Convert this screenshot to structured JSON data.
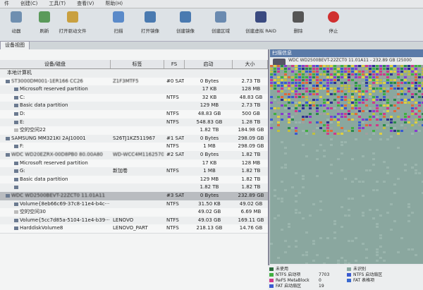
{
  "menu": [
    "件",
    "创建(C)",
    "工具(T)",
    "查看(V)",
    "帮助(H)"
  ],
  "toolbar": [
    "动器",
    "刷新",
    "打开驱动文件",
    "扫描",
    "打开镜像",
    "创建镜像",
    "创建区域",
    "创建虚拟 RAID",
    "删除",
    "停止"
  ],
  "tab": "设备视图",
  "table": {
    "columns": [
      "设备/磁盘",
      "标签",
      "FS",
      "启动",
      "大小"
    ],
    "rows": [
      [
        "本地计算机",
        "",
        "",
        "",
        ""
      ],
      [
        "ST3000DM001-1ER166 CC26",
        "Z1F3MTF5",
        "#0 SATA···",
        "0 Bytes",
        "2.73 TB"
      ],
      [
        "Microsoft reserved partition",
        "",
        "",
        "17 KB",
        "128 MB"
      ],
      [
        "C:",
        "",
        "NTFS",
        "32 KB",
        "48.83 GB"
      ],
      [
        "Basic data partition",
        "",
        "",
        "129 MB",
        "2.73 TB"
      ],
      [
        "D:",
        "",
        "NTFS",
        "48.83 GB",
        "500 GB"
      ],
      [
        "E:",
        "",
        "NTFS",
        "548.83 GB",
        "1.28 TB"
      ],
      [
        "空的空间22",
        "",
        "",
        "1.82 TB",
        "184.98 GB"
      ],
      [
        "SAMSUNG MM321KI 2AJ10001",
        "S26TJ1KZ511967",
        "#1 SATA···",
        "0 Bytes",
        "298.09 GB"
      ],
      [
        "F:",
        "",
        "NTFS",
        "1 MB",
        "298.09 GB"
      ],
      [
        "WDC WD20EZRX-00D8PB0 80.00A80",
        "WD-WCC4M1162570",
        "#2 SATA···",
        "0 Bytes",
        "1.82 TB"
      ],
      [
        "Microsoft reserved partition",
        "",
        "",
        "17 KB",
        "128 MB"
      ],
      [
        "G:",
        "新加卷",
        "NTFS",
        "1 MB",
        "1.82 TB"
      ],
      [
        "Basic data partition",
        "",
        "",
        "129 MB",
        "1.82 TB"
      ],
      [
        "",
        "",
        "",
        "1.82 TB",
        "1.82 TB"
      ],
      [
        "WDC WD2500BEVT-22ZCT0 11.01A11",
        "",
        "#3 SATA···",
        "0 Bytes",
        "232.89 GB"
      ],
      [
        "Volume{8eb66c69-37c8-11e4-b4c···",
        "",
        "NTFS",
        "31.50 KB",
        "49.02 GB"
      ],
      [
        "空的空间30",
        "",
        "",
        "49.02 GB",
        "6.69 MB"
      ],
      [
        "Volume{5cc7d85a-5104-11e4-b39···",
        "LENOVO",
        "NTFS",
        "49.03 GB",
        "169.11 GB"
      ],
      [
        "HarddiskVolume8",
        "LENOVO_PART",
        "NTFS",
        "218.13 GB",
        "14.76 GB"
      ]
    ]
  },
  "scan": {
    "title": "扫描信息",
    "disk": "WDC WD2500BEVT-22ZCT0 11.01A11 - 232.89 GB (25000",
    "legend": [
      [
        "未使用",
        ""
      ],
      [
        "未识别",
        ""
      ],
      [
        "NTFS 启动项",
        "7703"
      ],
      [
        "NTFS 启动扇区",
        ""
      ],
      [
        "ReFS MetaBlock",
        "0"
      ],
      [
        "FAT 表格项",
        ""
      ],
      [
        "FAT 启动扇区",
        "19"
      ],
      [
        "",
        ""
      ]
    ]
  }
}
